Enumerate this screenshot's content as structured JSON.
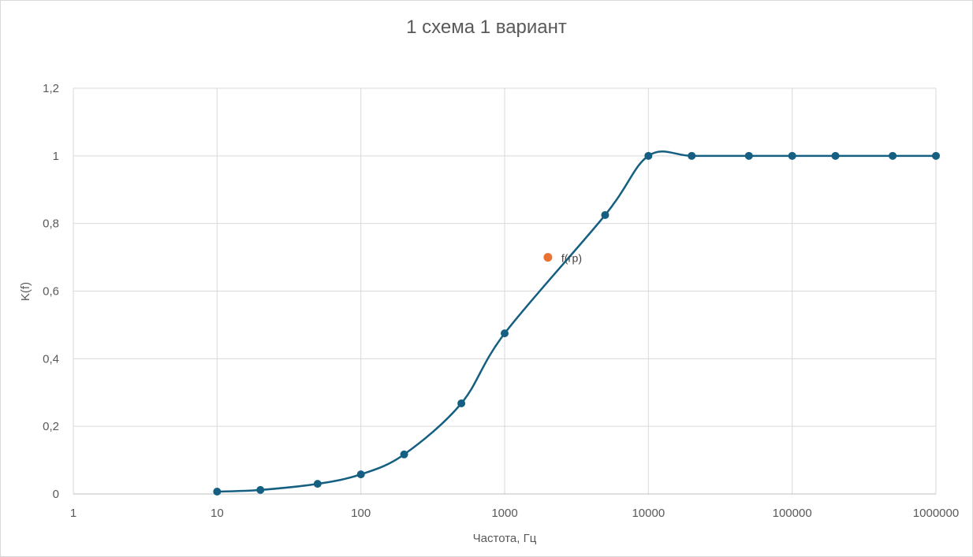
{
  "chart_data": {
    "type": "scatter",
    "title": "1 схема 1 вариант",
    "xlabel": "Частота, Гц",
    "ylabel": "K(f)",
    "x_scale": "log",
    "xlim": [
      1,
      1000000
    ],
    "ylim": [
      0,
      1.2
    ],
    "x_tick_labels": [
      "1",
      "10",
      "100",
      "1000",
      "10000",
      "100000",
      "1000000"
    ],
    "y_tick_labels": [
      "0",
      "0,2",
      "0,4",
      "0,6",
      "0,8",
      "1",
      "1,2"
    ],
    "grid": true,
    "legend": "none",
    "series": [
      {
        "x": [
          10,
          20,
          50,
          100,
          200,
          500,
          1000,
          5000,
          10000,
          20000,
          50000,
          100000,
          200000,
          500000,
          1000000
        ],
        "y": [
          0.007,
          0.012,
          0.03,
          0.058,
          0.117,
          0.268,
          0.475,
          0.825,
          1.0,
          1.0,
          1.0,
          1.0,
          1.0,
          1.0,
          1.0
        ],
        "color": "#156082",
        "smooth": true
      }
    ],
    "annotations": [
      {
        "x": 2000,
        "y": 0.7,
        "label": "f(гр)",
        "color": "#e97132"
      }
    ]
  }
}
